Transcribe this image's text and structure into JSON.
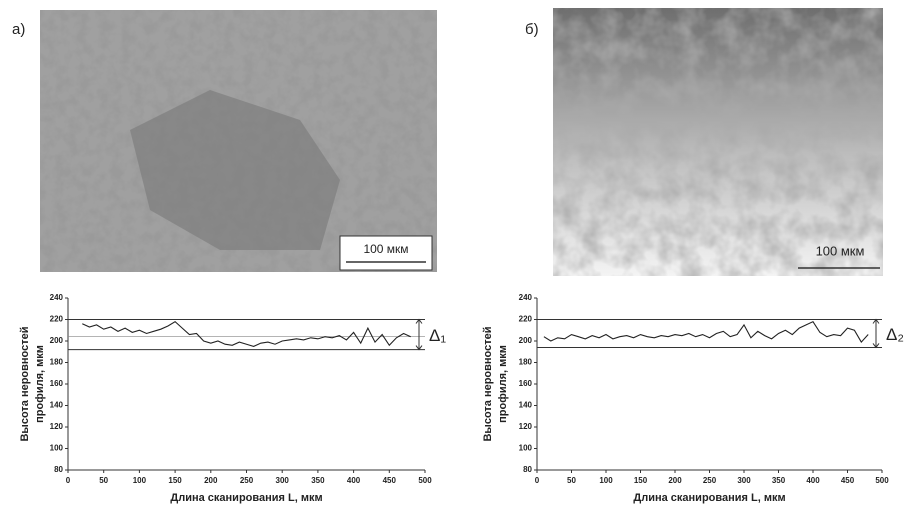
{
  "panels": [
    {
      "label": "а)",
      "scale_bar": "100 мкм"
    },
    {
      "label": "б)",
      "scale_bar": "100 мкм"
    }
  ],
  "chart_data": [
    {
      "type": "line",
      "ylabel": [
        "Высота неровностей",
        "профиля, мкм"
      ],
      "xlabel": "Длина сканирования L, мкм",
      "xlim": [
        0,
        500
      ],
      "xticks": [
        0,
        50,
        100,
        150,
        200,
        250,
        300,
        350,
        400,
        450,
        500
      ],
      "ylim": [
        80,
        240
      ],
      "yticks": [
        80,
        100,
        120,
        140,
        160,
        180,
        200,
        220,
        240
      ],
      "bounds": [
        192,
        220
      ],
      "mean": 204,
      "annotation": "Δ₁",
      "series": [
        {
          "color": "#222222",
          "x": [
            20,
            30,
            40,
            50,
            60,
            70,
            80,
            90,
            100,
            110,
            120,
            130,
            140,
            150,
            160,
            170,
            180,
            190,
            200,
            210,
            220,
            230,
            240,
            250,
            260,
            270,
            280,
            290,
            300,
            310,
            320,
            330,
            340,
            350,
            360,
            370,
            380,
            390,
            400,
            410,
            420,
            430,
            440,
            450,
            460,
            470,
            480
          ],
          "values": [
            216,
            213,
            215,
            211,
            213,
            209,
            212,
            208,
            210,
            207,
            209,
            211,
            214,
            218,
            212,
            206,
            207,
            200,
            198,
            200,
            197,
            196,
            199,
            197,
            195,
            198,
            199,
            197,
            200,
            201,
            202,
            201,
            203,
            202,
            204,
            203,
            205,
            201,
            208,
            198,
            212,
            199,
            206,
            196,
            203,
            207,
            204
          ]
        }
      ]
    },
    {
      "type": "line",
      "ylabel": [
        "Высота неровностей",
        "профиля, мкм"
      ],
      "xlabel": "Длина сканирования L, мкм",
      "xlim": [
        0,
        500
      ],
      "xticks": [
        0,
        50,
        100,
        150,
        200,
        250,
        300,
        350,
        400,
        450,
        500
      ],
      "ylim": [
        80,
        240
      ],
      "yticks": [
        80,
        100,
        120,
        140,
        160,
        180,
        200,
        220,
        240
      ],
      "bounds": [
        194,
        220
      ],
      "annotation": "Δ₂",
      "series": [
        {
          "color": "#222222",
          "x": [
            10,
            20,
            30,
            40,
            50,
            60,
            70,
            80,
            90,
            100,
            110,
            120,
            130,
            140,
            150,
            160,
            170,
            180,
            190,
            200,
            210,
            220,
            230,
            240,
            250,
            260,
            270,
            280,
            290,
            300,
            310,
            320,
            330,
            340,
            350,
            360,
            370,
            380,
            390,
            400,
            410,
            420,
            430,
            440,
            450,
            460,
            470,
            480
          ],
          "values": [
            204,
            200,
            203,
            202,
            206,
            204,
            202,
            205,
            203,
            206,
            202,
            204,
            205,
            203,
            206,
            204,
            203,
            205,
            204,
            206,
            205,
            207,
            204,
            206,
            203,
            207,
            209,
            204,
            206,
            215,
            203,
            209,
            205,
            202,
            207,
            210,
            206,
            212,
            215,
            218,
            208,
            204,
            206,
            205,
            212,
            210,
            199,
            206
          ]
        }
      ]
    }
  ]
}
